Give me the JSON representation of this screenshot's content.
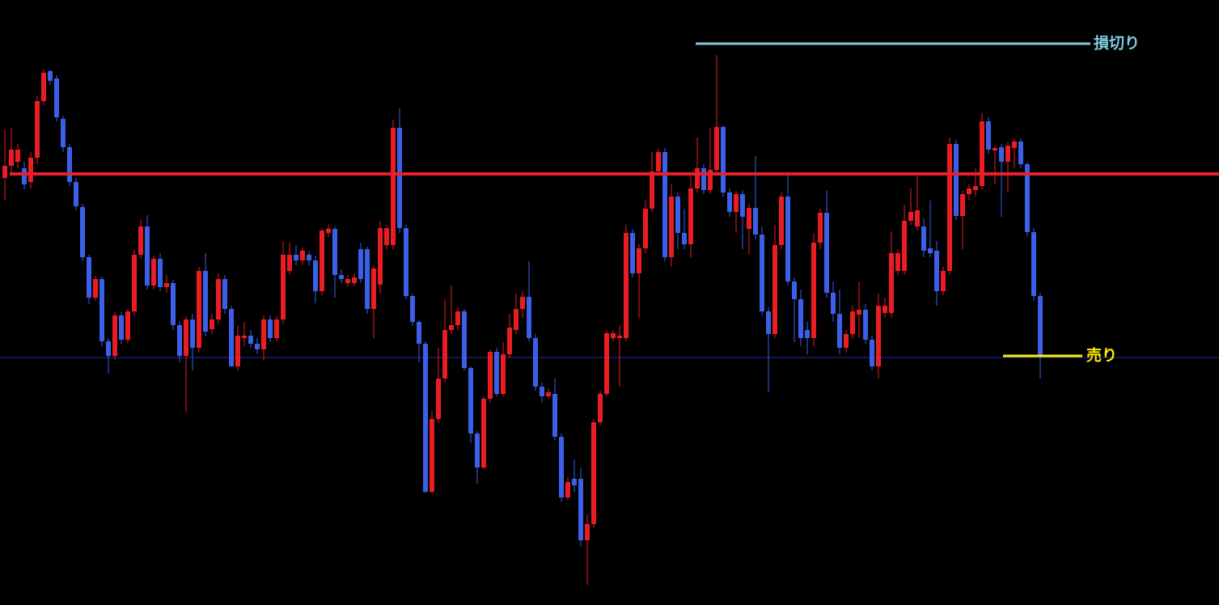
{
  "chart_data": {
    "type": "candlestick",
    "ylim": [
      0,
      748
    ],
    "up_color": "#ea1c24",
    "down_color": "#3b5fe8",
    "ohlc": [
      [
        528,
        588,
        500,
        543
      ],
      [
        543,
        590,
        535,
        563
      ],
      [
        548,
        570,
        540,
        563
      ],
      [
        540,
        548,
        514,
        520
      ],
      [
        523,
        560,
        515,
        553
      ],
      [
        553,
        630,
        545,
        623
      ],
      [
        623,
        662,
        618,
        658
      ],
      [
        660,
        662,
        643,
        648
      ],
      [
        651,
        655,
        598,
        603
      ],
      [
        601,
        605,
        560,
        566
      ],
      [
        566,
        570,
        518,
        523
      ],
      [
        523,
        528,
        488,
        493
      ],
      [
        492,
        496,
        425,
        430
      ],
      [
        430,
        433,
        372,
        380
      ],
      [
        380,
        407,
        376,
        403
      ],
      [
        403,
        406,
        320,
        326
      ],
      [
        326,
        330,
        286,
        308
      ],
      [
        308,
        362,
        303,
        358
      ],
      [
        358,
        362,
        323,
        328
      ],
      [
        328,
        366,
        324,
        363
      ],
      [
        363,
        440,
        358,
        433
      ],
      [
        433,
        476,
        428,
        468
      ],
      [
        468,
        482,
        390,
        395
      ],
      [
        395,
        432,
        390,
        428
      ],
      [
        428,
        435,
        388,
        393
      ],
      [
        393,
        408,
        386,
        398
      ],
      [
        398,
        402,
        340,
        346
      ],
      [
        346,
        350,
        300,
        308
      ],
      [
        308,
        357,
        238,
        353
      ],
      [
        353,
        360,
        290,
        318
      ],
      [
        318,
        418,
        312,
        413
      ],
      [
        413,
        435,
        332,
        338
      ],
      [
        341,
        360,
        335,
        353
      ],
      [
        353,
        410,
        348,
        403
      ],
      [
        403,
        408,
        360,
        366
      ],
      [
        366,
        370,
        295,
        295
      ],
      [
        295,
        345,
        290,
        333
      ],
      [
        330,
        350,
        320,
        333
      ],
      [
        333,
        340,
        318,
        323
      ],
      [
        323,
        330,
        310,
        316
      ],
      [
        316,
        358,
        302,
        353
      ],
      [
        353,
        358,
        325,
        330
      ],
      [
        330,
        357,
        326,
        353
      ],
      [
        353,
        450,
        348,
        433
      ],
      [
        413,
        448,
        408,
        433
      ],
      [
        433,
        445,
        420,
        426
      ],
      [
        426,
        442,
        420,
        438
      ],
      [
        433,
        438,
        420,
        426
      ],
      [
        426,
        432,
        373,
        388
      ],
      [
        388,
        466,
        383,
        463
      ],
      [
        460,
        470,
        455,
        465
      ],
      [
        465,
        468,
        380,
        408
      ],
      [
        408,
        415,
        398,
        403
      ],
      [
        398,
        408,
        394,
        403
      ],
      [
        398,
        410,
        394,
        405
      ],
      [
        440,
        448,
        398,
        403
      ],
      [
        440,
        443,
        360,
        366
      ],
      [
        366,
        420,
        330,
        416
      ],
      [
        396,
        475,
        385,
        466
      ],
      [
        445,
        470,
        440,
        466
      ],
      [
        445,
        600,
        440,
        590
      ],
      [
        590,
        614,
        460,
        466
      ],
      [
        466,
        470,
        378,
        382
      ],
      [
        382,
        385,
        345,
        350
      ],
      [
        350,
        352,
        300,
        323
      ],
      [
        323,
        326,
        138,
        140
      ],
      [
        140,
        240,
        138,
        230
      ],
      [
        230,
        318,
        225,
        280
      ],
      [
        280,
        378,
        275,
        340
      ],
      [
        340,
        395,
        335,
        346
      ],
      [
        346,
        368,
        340,
        363
      ],
      [
        363,
        366,
        290,
        293
      ],
      [
        293,
        295,
        200,
        212
      ],
      [
        212,
        215,
        150,
        170
      ],
      [
        170,
        258,
        168,
        255
      ],
      [
        255,
        316,
        250,
        313
      ],
      [
        313,
        318,
        258,
        261
      ],
      [
        261,
        325,
        258,
        310
      ],
      [
        310,
        360,
        305,
        343
      ],
      [
        340,
        385,
        335,
        366
      ],
      [
        366,
        388,
        355,
        381
      ],
      [
        381,
        425,
        326,
        330
      ],
      [
        330,
        335,
        265,
        270
      ],
      [
        270,
        275,
        250,
        258
      ],
      [
        258,
        268,
        255,
        263
      ],
      [
        261,
        280,
        204,
        208
      ],
      [
        208,
        212,
        128,
        133
      ],
      [
        133,
        158,
        130,
        152
      ],
      [
        156,
        180,
        140,
        148
      ],
      [
        156,
        170,
        72,
        80
      ],
      [
        80,
        112,
        25,
        100
      ],
      [
        100,
        230,
        96,
        226
      ],
      [
        226,
        265,
        222,
        261
      ],
      [
        261,
        340,
        258,
        336
      ],
      [
        330,
        340,
        326,
        336
      ],
      [
        330,
        345,
        270,
        333
      ],
      [
        330,
        470,
        326,
        460
      ],
      [
        460,
        465,
        405,
        410
      ],
      [
        410,
        446,
        355,
        441
      ],
      [
        441,
        500,
        435,
        490
      ],
      [
        490,
        560,
        486,
        536
      ],
      [
        536,
        564,
        530,
        560
      ],
      [
        560,
        565,
        425,
        430
      ],
      [
        430,
        520,
        418,
        505
      ],
      [
        505,
        510,
        440,
        460
      ],
      [
        460,
        490,
        440,
        446
      ],
      [
        446,
        530,
        430,
        515
      ],
      [
        515,
        578,
        510,
        540
      ],
      [
        540,
        545,
        508,
        513
      ],
      [
        513,
        590,
        508,
        538
      ],
      [
        538,
        680,
        533,
        591
      ],
      [
        591,
        593,
        505,
        510
      ],
      [
        510,
        515,
        480,
        486
      ],
      [
        486,
        512,
        460,
        508
      ],
      [
        508,
        513,
        440,
        480
      ],
      [
        465,
        496,
        433,
        491
      ],
      [
        491,
        555,
        452,
        458
      ],
      [
        458,
        468,
        358,
        363
      ],
      [
        363,
        368,
        263,
        335
      ],
      [
        335,
        470,
        330,
        445
      ],
      [
        445,
        510,
        440,
        505
      ],
      [
        505,
        535,
        395,
        400
      ],
      [
        400,
        405,
        325,
        378
      ],
      [
        378,
        390,
        320,
        330
      ],
      [
        340,
        350,
        310,
        330
      ],
      [
        330,
        460,
        320,
        448
      ],
      [
        448,
        490,
        440,
        485
      ],
      [
        485,
        512,
        380,
        386
      ],
      [
        386,
        400,
        350,
        360
      ],
      [
        360,
        390,
        310,
        318
      ],
      [
        318,
        340,
        312,
        335
      ],
      [
        335,
        370,
        330,
        363
      ],
      [
        359,
        400,
        330,
        365
      ],
      [
        365,
        372,
        323,
        328
      ],
      [
        328,
        333,
        290,
        295
      ],
      [
        295,
        385,
        280,
        370
      ],
      [
        361,
        380,
        355,
        370
      ],
      [
        361,
        462,
        355,
        435
      ],
      [
        413,
        440,
        408,
        435
      ],
      [
        413,
        495,
        408,
        475
      ],
      [
        475,
        515,
        470,
        486
      ],
      [
        468,
        530,
        463,
        488
      ],
      [
        468,
        478,
        430,
        438
      ],
      [
        441,
        500,
        430,
        435
      ],
      [
        438,
        450,
        370,
        388
      ],
      [
        388,
        418,
        383,
        413
      ],
      [
        413,
        578,
        408,
        570
      ],
      [
        570,
        575,
        476,
        481
      ],
      [
        481,
        512,
        440,
        508
      ],
      [
        508,
        520,
        500,
        515
      ],
      [
        513,
        540,
        505,
        518
      ],
      [
        518,
        608,
        513,
        598
      ],
      [
        598,
        603,
        558,
        563
      ],
      [
        562,
        568,
        520,
        565
      ],
      [
        566,
        570,
        480,
        548
      ],
      [
        548,
        572,
        510,
        568
      ],
      [
        565,
        577,
        540,
        573
      ],
      [
        573,
        577,
        540,
        545
      ],
      [
        545,
        548,
        456,
        461
      ],
      [
        461,
        466,
        376,
        382
      ],
      [
        382,
        386,
        280,
        308
      ]
    ],
    "levels": [
      {
        "value": 533,
        "color": "#e8202a"
      },
      {
        "value": 694,
        "color": "#7ecbe0",
        "label": "損切り"
      },
      {
        "value": 308,
        "color": "#ffee00",
        "label": "売り"
      },
      {
        "value": 306,
        "color": "#2a2aa0"
      }
    ]
  }
}
